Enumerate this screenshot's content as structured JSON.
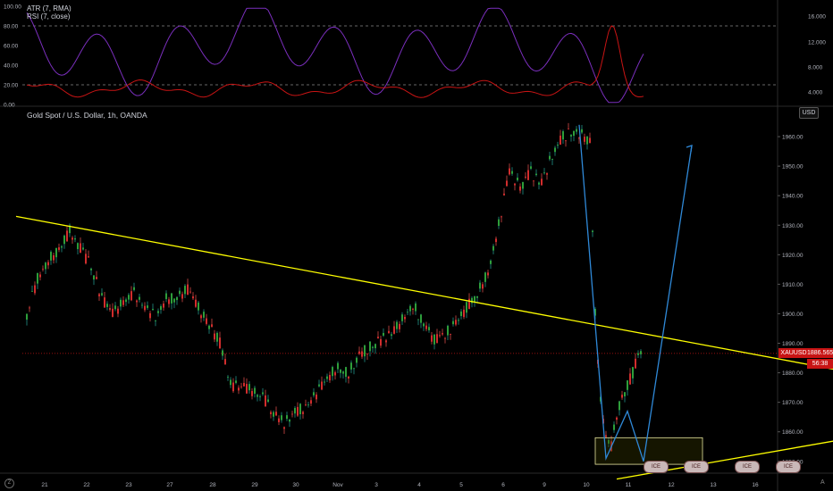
{
  "chart_data": [
    {
      "type": "line",
      "title": "ATR (7, RMA)",
      "subtitle": "RSI (7, close)",
      "left_axis": {
        "ticks": [
          "100.00",
          "80.00",
          "60.00",
          "40.00",
          "20.00",
          "0.00"
        ],
        "ylim": [
          0,
          100
        ]
      },
      "right_axis": {
        "ticks": [
          "16.000",
          "12.000",
          "8.000",
          "4.000"
        ]
      },
      "reference_lines": [
        80,
        20
      ],
      "series": [
        {
          "color": "#7b2fbe"
        },
        {
          "color": "#c81414"
        }
      ]
    },
    {
      "type": "candlestick",
      "title": "Gold Spot / U.S. Dollar, 1h, OANDA",
      "y_ticks": [
        1850,
        1860,
        1870,
        1880,
        1890,
        1900,
        1910,
        1920,
        1930,
        1940,
        1950,
        1960
      ],
      "ylim": [
        1846,
        1970
      ],
      "x_ticks": [
        "21",
        "22",
        "23",
        "27",
        "28",
        "29",
        "30",
        "Nov",
        "3",
        "4",
        "5",
        "6",
        "9",
        "10",
        "11",
        "12",
        "13",
        "16"
      ],
      "current_price": {
        "symbol": "XAUUSD",
        "price": "1886.565",
        "countdown": "56:38",
        "value": 1886.565
      },
      "ohlc_path": [
        [
          0,
          1900
        ],
        [
          2,
          1912
        ],
        [
          4,
          1918
        ],
        [
          6,
          1922
        ],
        [
          8,
          1928
        ],
        [
          10,
          1922
        ],
        [
          12,
          1916
        ],
        [
          14,
          1905
        ],
        [
          16,
          1900
        ],
        [
          18,
          1904
        ],
        [
          20,
          1907
        ],
        [
          22,
          1902
        ],
        [
          24,
          1899
        ],
        [
          26,
          1905
        ],
        [
          28,
          1906
        ],
        [
          30,
          1908
        ],
        [
          32,
          1902
        ],
        [
          34,
          1896
        ],
        [
          36,
          1890
        ],
        [
          38,
          1876
        ],
        [
          40,
          1875
        ],
        [
          42,
          1874
        ],
        [
          44,
          1872
        ],
        [
          46,
          1866
        ],
        [
          48,
          1863
        ],
        [
          50,
          1867
        ],
        [
          52,
          1868
        ],
        [
          54,
          1873
        ],
        [
          56,
          1878
        ],
        [
          58,
          1882
        ],
        [
          60,
          1880
        ],
        [
          62,
          1886
        ],
        [
          64,
          1889
        ],
        [
          66,
          1891
        ],
        [
          68,
          1893
        ],
        [
          70,
          1898
        ],
        [
          72,
          1903
        ],
        [
          74,
          1897
        ],
        [
          76,
          1891
        ],
        [
          78,
          1893
        ],
        [
          80,
          1897
        ],
        [
          82,
          1902
        ],
        [
          84,
          1907
        ],
        [
          86,
          1914
        ],
        [
          88,
          1930
        ],
        [
          90,
          1948
        ],
        [
          92,
          1943
        ],
        [
          94,
          1948
        ],
        [
          96,
          1944
        ],
        [
          98,
          1954
        ],
        [
          100,
          1960
        ],
        [
          102,
          1962
        ],
        [
          104,
          1960
        ],
        [
          105,
          1958
        ]
      ],
      "ohlc_path_tail": [
        [
          105,
          1958
        ],
        [
          106,
          1900
        ],
        [
          107,
          1870
        ],
        [
          108,
          1858
        ],
        [
          109,
          1855
        ],
        [
          110,
          1866
        ],
        [
          111,
          1872
        ],
        [
          112,
          1876
        ],
        [
          113,
          1880
        ],
        [
          114,
          1886
        ],
        [
          115,
          1888
        ]
      ],
      "trendlines": [
        {
          "color": "#ffff00",
          "from": [
            -2,
            1933
          ],
          "to": [
            154,
            1880
          ]
        },
        {
          "color": "#ffff00",
          "from": [
            110,
            1844
          ],
          "to": [
            154,
            1858
          ]
        }
      ],
      "projection": {
        "color": "#2f89d8",
        "points": [
          [
            103,
            1964
          ],
          [
            108,
            1851
          ],
          [
            112,
            1867
          ],
          [
            115,
            1850
          ],
          [
            124,
            1957
          ]
        ]
      },
      "zone": {
        "y_range": [
          1849,
          1858
        ],
        "x_range": [
          106,
          126
        ]
      },
      "event_badges": [
        "ICE",
        "ICE",
        "ICE",
        "ICE",
        "ICE"
      ]
    }
  ]
}
